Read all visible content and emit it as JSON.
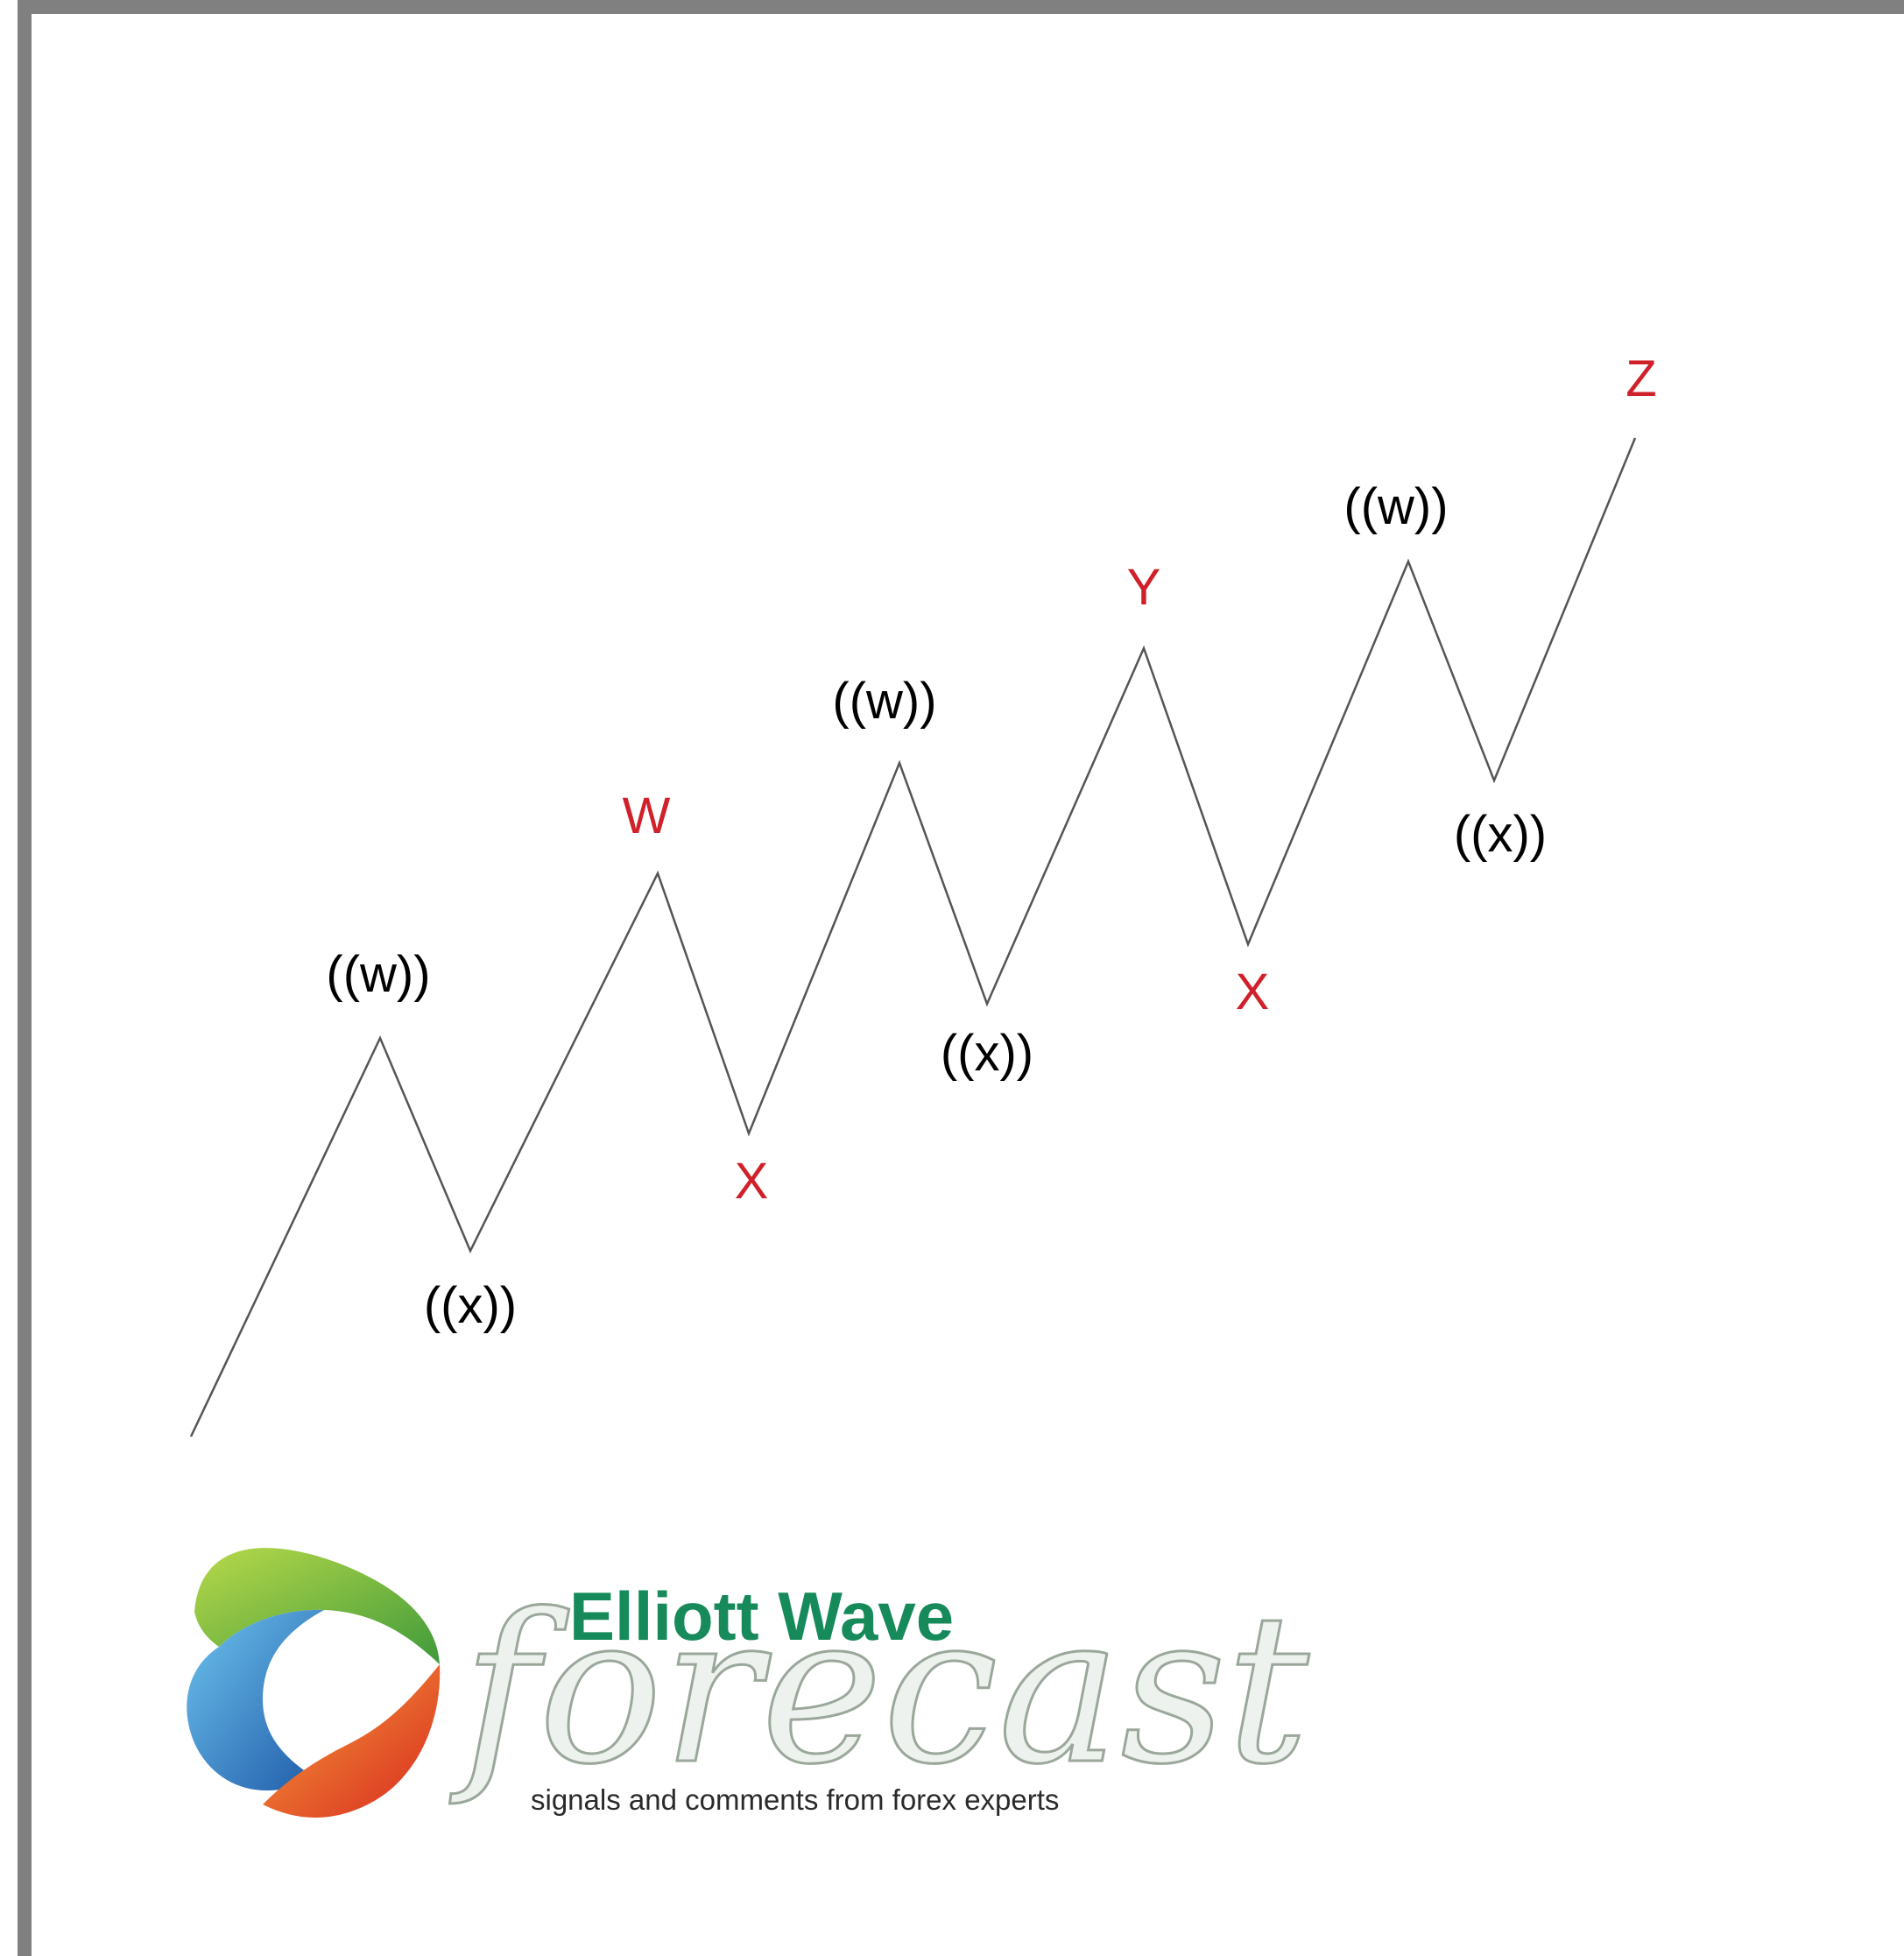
{
  "diagram": {
    "wave_labels": [
      {
        "text": "((w))",
        "color": "#000000"
      },
      {
        "text": "((x))",
        "color": "#000000"
      },
      {
        "text": "W",
        "color": "#d0202a"
      },
      {
        "text": "X",
        "color": "#d0202a"
      },
      {
        "text": "((w))",
        "color": "#000000"
      },
      {
        "text": "((x))",
        "color": "#000000"
      },
      {
        "text": "Y",
        "color": "#d0202a"
      },
      {
        "text": "X",
        "color": "#d0202a"
      },
      {
        "text": "((w))",
        "color": "#000000"
      },
      {
        "text": "((x))",
        "color": "#000000"
      },
      {
        "text": "Z",
        "color": "#d0202a"
      }
    ],
    "line_color": "#555555"
  },
  "logo": {
    "title": "Elliott Wave",
    "script": "forecast",
    "tagline": "signals and comments from forex experts",
    "title_color": "#168a5a"
  }
}
